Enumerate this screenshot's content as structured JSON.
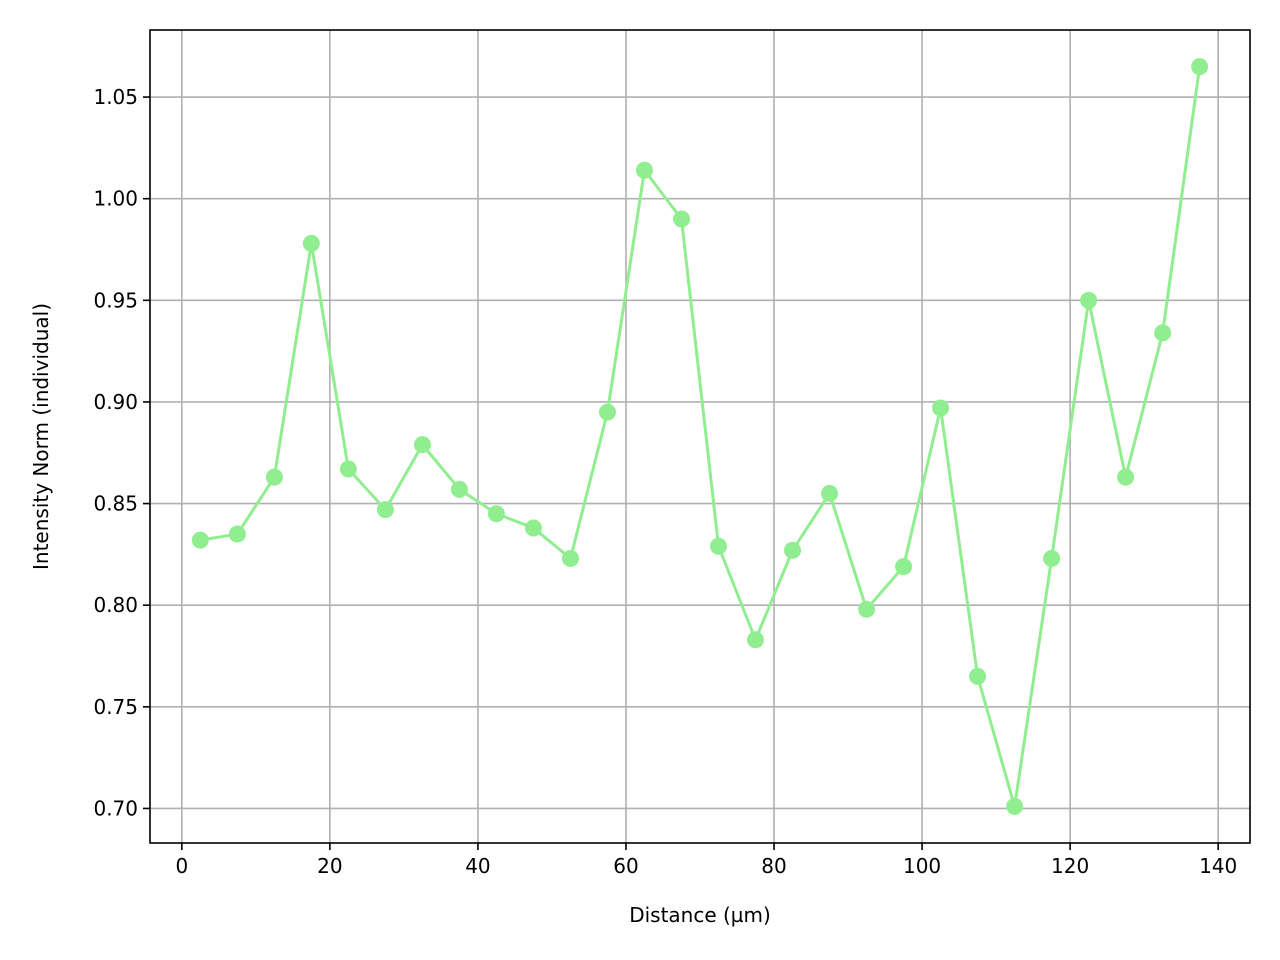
{
  "chart_data": {
    "type": "line",
    "xlabel": "Distance (µm)",
    "ylabel": "Intensity Norm (individual)",
    "xlim": [
      -4.3,
      144.3
    ],
    "ylim": [
      0.683,
      1.083
    ],
    "xticks": [
      0,
      20,
      40,
      60,
      80,
      100,
      120,
      140
    ],
    "yticks": [
      0.7,
      0.75,
      0.8,
      0.85,
      0.9,
      0.95,
      1.0,
      1.05
    ],
    "grid": true,
    "legend": "none",
    "series": [
      {
        "color": "#90ee90",
        "marker": "circle",
        "x": [
          2.5,
          7.5,
          12.5,
          17.5,
          22.5,
          27.5,
          32.5,
          37.5,
          42.5,
          47.5,
          52.5,
          57.5,
          62.5,
          67.5,
          72.5,
          77.5,
          82.5,
          87.5,
          92.5,
          97.5,
          102.5,
          107.5,
          112.5,
          117.5,
          122.5,
          127.5,
          132.5,
          137.5
        ],
        "y": [
          0.832,
          0.835,
          0.863,
          0.978,
          0.867,
          0.847,
          0.879,
          0.857,
          0.845,
          0.838,
          0.823,
          0.895,
          1.014,
          0.99,
          0.829,
          0.783,
          0.827,
          0.855,
          0.798,
          0.819,
          0.897,
          0.765,
          0.701,
          0.823,
          0.95,
          0.863,
          0.934,
          1.065
        ]
      }
    ]
  }
}
